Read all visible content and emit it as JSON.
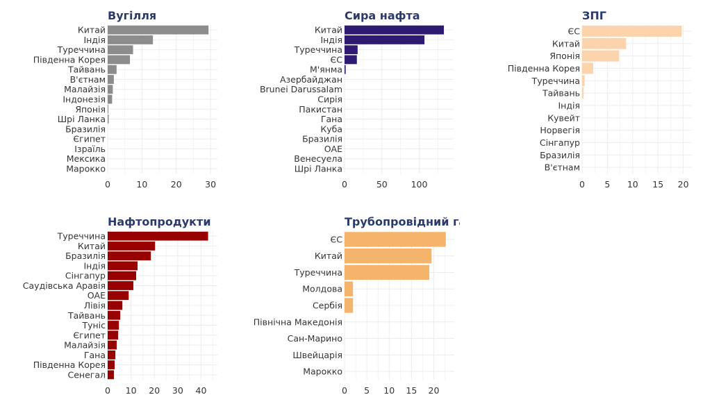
{
  "chart_data": [
    {
      "type": "bar",
      "orientation": "horizontal",
      "title": "Вугілля",
      "color": "#8c8c8c",
      "categories": [
        "Китай",
        "Індія",
        "Туреччина",
        "Південна Корея",
        "Тайвань",
        "В'єтнам",
        "Малайзія",
        "Індонезія",
        "Японія",
        "Шрі Ланка",
        "Бразилія",
        "Єгипет",
        "Ізраїль",
        "Мексика",
        "Марокко"
      ],
      "values": [
        29.4,
        13.2,
        7.4,
        6.5,
        2.6,
        1.8,
        1.5,
        1.3,
        0.2,
        0.3,
        0,
        0,
        0,
        0,
        0
      ],
      "xlim": [
        0,
        32
      ],
      "xticks": [
        0,
        10,
        20,
        30
      ],
      "grid": true
    },
    {
      "type": "bar",
      "orientation": "horizontal",
      "title": "Сира нафта",
      "color": "#2f1a72",
      "categories": [
        "Китай",
        "Індія",
        "Туреччина",
        "ЄС",
        "М'янма",
        "Азербайджан",
        "Brunei Darussalam",
        "Сирія",
        "Пакистан",
        "Гана",
        "Куба",
        "Бразилія",
        "ОАЕ",
        "Венесуела",
        "Шрі Ланка"
      ],
      "values": [
        133,
        107,
        17.5,
        16.5,
        1.5,
        0,
        0,
        0,
        0,
        0,
        0,
        0,
        0,
        0,
        0
      ],
      "xlim": [
        0,
        146
      ],
      "xticks": [
        0,
        50,
        100
      ],
      "grid": true
    },
    {
      "type": "bar",
      "orientation": "horizontal",
      "title": "ЗПГ",
      "color": "#fbd4ae",
      "categories": [
        "ЄС",
        "Китай",
        "Японія",
        "Південна Корея",
        "Туреччина",
        "Тайвань",
        "Індія",
        "Кувейт",
        "Норвегія",
        "Сінгапур",
        "Бразилія",
        "В'єтнам"
      ],
      "values": [
        19.7,
        8.7,
        7.3,
        2.2,
        0.5,
        0.3,
        0,
        0,
        0,
        0,
        0,
        0
      ],
      "xlim": [
        0,
        21.7
      ],
      "xticks": [
        0,
        5,
        10,
        15,
        20
      ],
      "grid": true
    },
    {
      "type": "bar",
      "orientation": "horizontal",
      "title": "Нафтопродукти",
      "color": "#990000",
      "categories": [
        "Туреччина",
        "Китай",
        "Бразилія",
        "Індія",
        "Сінгапур",
        "Саудівська Аравія",
        "ОАЕ",
        "Лівія",
        "Тайвань",
        "Туніс",
        "Єгипет",
        "Малайзія",
        "Гана",
        "Південна Корея",
        "Сенегал"
      ],
      "values": [
        43,
        20.3,
        18.5,
        12.8,
        12.2,
        11,
        9,
        6.3,
        5.4,
        4.8,
        4.5,
        3.9,
        3.3,
        3,
        2.7
      ],
      "xlim": [
        0,
        47
      ],
      "xticks": [
        0,
        10,
        20,
        30,
        40
      ],
      "grid": true
    },
    {
      "type": "bar",
      "orientation": "horizontal",
      "title": "Трубопровідний газ",
      "color": "#f5b46b",
      "categories": [
        "ЄС",
        "Китай",
        "Туреччина",
        "Молдова",
        "Сербія",
        "Північна Македонія",
        "Сан-Марино",
        "Швейцарія",
        "Марокко"
      ],
      "values": [
        22.7,
        19.5,
        19,
        1.9,
        1.9,
        0,
        0,
        0,
        0
      ],
      "xlim": [
        0,
        24.6
      ],
      "xticks": [
        0,
        5,
        10,
        15,
        20
      ],
      "grid": true
    }
  ]
}
